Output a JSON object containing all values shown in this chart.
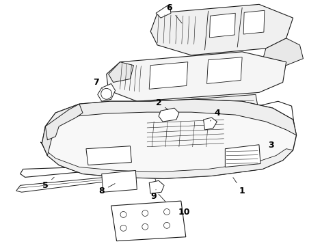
{
  "bg_color": "#ffffff",
  "line_color": "#1a1a1a",
  "label_color": "#000000",
  "label_fontsize": 9,
  "lw": 0.7
}
